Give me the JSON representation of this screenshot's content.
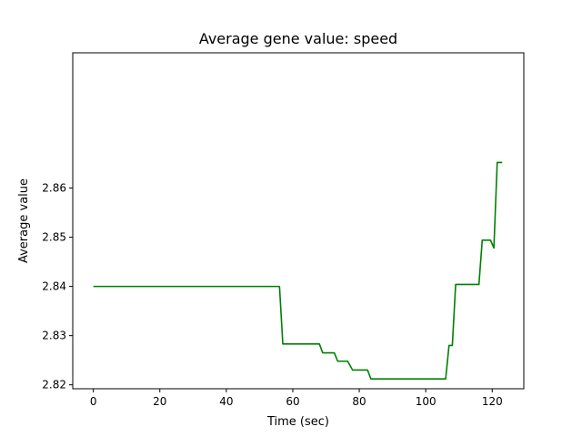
{
  "chart_data": {
    "type": "line",
    "title": "Average gene value: speed",
    "xlabel": "Time (sec)",
    "ylabel": "Average value",
    "xlim": [
      -6.2,
      129.5
    ],
    "ylim": [
      2.8192,
      2.8875
    ],
    "xticks": [
      0,
      20,
      40,
      60,
      80,
      100,
      120
    ],
    "yticks": [
      2.82,
      2.83,
      2.84,
      2.85,
      2.86
    ],
    "grid": false,
    "line_color": "#008000",
    "series": [
      {
        "x": [
          0,
          56,
          57,
          68,
          69,
          72.5,
          73.5,
          76.5,
          78,
          82.5,
          83.5,
          106,
          107,
          108,
          109,
          116,
          117,
          119.5,
          120.5,
          121.5,
          123
        ],
        "y": [
          2.84,
          2.84,
          2.8283,
          2.8283,
          2.8265,
          2.8265,
          2.8248,
          2.8248,
          2.823,
          2.823,
          2.8212,
          2.8212,
          2.828,
          2.828,
          2.8404,
          2.8404,
          2.8494,
          2.8494,
          2.8478,
          2.8652,
          2.8652
        ]
      }
    ]
  }
}
